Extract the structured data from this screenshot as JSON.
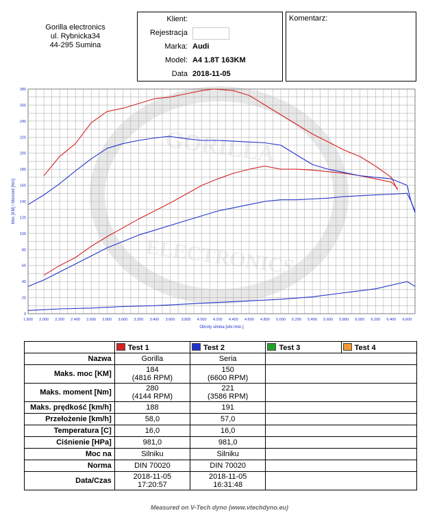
{
  "header": {
    "company": [
      "Gorilla electronics",
      "ul. Rybnicka34",
      "44-295 Sumina"
    ],
    "client_label": "Klient:",
    "reg_label": "Rejestracja",
    "make_label": "Marka:",
    "make_value": "Audi",
    "model_label": "Model:",
    "model_value": "A4 1.8T 163KM",
    "date_label": "Data",
    "date_value": "2018-11-05",
    "comment_label": "Komentarz:"
  },
  "chart_data": {
    "type": "line",
    "xlabel": "Obroty silnika [obr./min.]",
    "ylabel": "Moc [KM] / Moment [Nm]",
    "xlim": [
      1800,
      6700
    ],
    "ylim": [
      0,
      280
    ],
    "x_ticks": [
      "1.800",
      "2.000",
      "2.200",
      "2.400",
      "2.600",
      "2.800",
      "3.000",
      "3.200",
      "3.400",
      "3.600",
      "3.800",
      "4.000",
      "4.200",
      "4.400",
      "4.600",
      "4.800",
      "5.000",
      "5.200",
      "5.400",
      "5.600",
      "5.800",
      "6.000",
      "6.200",
      "6.400",
      "6.600"
    ],
    "y_ticks": [
      "0",
      "20",
      "40",
      "60",
      "80",
      "100",
      "120",
      "140",
      "160",
      "180",
      "200",
      "220",
      "240",
      "260",
      "280"
    ],
    "watermark": [
      "GORILLA",
      "ELECTRONICS"
    ],
    "series": [
      {
        "name": "Test 1 torque",
        "color": "#d42222",
        "x": [
          2000,
          2200,
          2400,
          2600,
          2800,
          3000,
          3200,
          3400,
          3600,
          3800,
          4000,
          4150,
          4400,
          4600,
          4800,
          5000,
          5200,
          5400,
          5600,
          5800,
          6000,
          6200,
          6400,
          6480
        ],
        "y": [
          172,
          196,
          212,
          238,
          252,
          256,
          262,
          268,
          270,
          274,
          278,
          280,
          278,
          272,
          260,
          248,
          236,
          224,
          214,
          204,
          196,
          184,
          170,
          154
        ]
      },
      {
        "name": "Test 1 power",
        "color": "#d42222",
        "x": [
          2000,
          2200,
          2400,
          2600,
          2800,
          3000,
          3200,
          3400,
          3600,
          3800,
          4000,
          4200,
          4400,
          4600,
          4800,
          5000,
          5200,
          5400,
          5600,
          5800,
          6000,
          6200,
          6400,
          6480
        ],
        "y": [
          48,
          60,
          70,
          84,
          96,
          107,
          118,
          128,
          138,
          149,
          160,
          168,
          175,
          180,
          184,
          180,
          180,
          179,
          177,
          175,
          172,
          168,
          164,
          156
        ]
      },
      {
        "name": "Test 2 torque",
        "color": "#2233cc",
        "x": [
          1800,
          2000,
          2200,
          2400,
          2600,
          2800,
          3000,
          3200,
          3400,
          3586,
          3800,
          4000,
          4200,
          4400,
          4600,
          4800,
          5000,
          5200,
          5400,
          5600,
          5800,
          6000,
          6200,
          6400,
          6600,
          6650,
          6700
        ],
        "y": [
          136,
          148,
          162,
          178,
          193,
          206,
          212,
          216,
          219,
          221,
          218,
          216,
          216,
          215,
          214,
          213,
          210,
          198,
          186,
          180,
          176,
          172,
          170,
          168,
          160,
          140,
          128
        ]
      },
      {
        "name": "Test 2 power",
        "color": "#2233cc",
        "x": [
          1800,
          2000,
          2200,
          2400,
          2600,
          2800,
          3000,
          3200,
          3400,
          3600,
          3800,
          4000,
          4200,
          4400,
          4600,
          4800,
          5000,
          5200,
          5400,
          5600,
          5800,
          6000,
          6200,
          6400,
          6600,
          6650,
          6700
        ],
        "y": [
          34,
          42,
          52,
          62,
          72,
          82,
          90,
          98,
          104,
          110,
          116,
          122,
          128,
          132,
          136,
          140,
          142,
          142,
          143,
          144,
          146,
          147,
          148,
          149,
          150,
          140,
          126
        ]
      },
      {
        "name": "Loss",
        "color": "#2233cc",
        "x": [
          1800,
          2200,
          2600,
          3000,
          3400,
          3800,
          4200,
          4600,
          5000,
          5400,
          5800,
          6200,
          6600,
          6700
        ],
        "y": [
          4,
          6,
          7,
          9,
          10,
          12,
          14,
          16,
          18,
          21,
          26,
          31,
          40,
          34
        ]
      }
    ]
  },
  "legend": [
    {
      "label": "Test 1",
      "color": "#d42222"
    },
    {
      "label": "Test 2",
      "color": "#2233cc"
    },
    {
      "label": "Test 3",
      "color": "#22a02a"
    },
    {
      "label": "Test 4",
      "color": "#f09a30"
    }
  ],
  "table": {
    "rows": [
      {
        "label": "Nazwa",
        "t1": [
          "Gorilla"
        ],
        "t2": [
          "Seria"
        ]
      },
      {
        "label": "Maks. moc [KM]",
        "t1": [
          "184",
          "(4816 RPM)"
        ],
        "t2": [
          "150",
          "(6600 RPM)"
        ]
      },
      {
        "label": "Maks. moment [Nm]",
        "t1": [
          "280",
          "(4144 RPM)"
        ],
        "t2": [
          "221",
          "(3586 RPM)"
        ]
      },
      {
        "label": "Maks. prędkość [km/h]",
        "t1": [
          "188"
        ],
        "t2": [
          "191"
        ]
      },
      {
        "label": "Przełożenie [km/h]",
        "t1": [
          "58,0"
        ],
        "t2": [
          "57,0"
        ]
      },
      {
        "label": "Temperatura [C]",
        "t1": [
          "16,0"
        ],
        "t2": [
          "16,0"
        ]
      },
      {
        "label": "Ciśnienie [HPa]",
        "t1": [
          "981,0"
        ],
        "t2": [
          "981,0"
        ]
      },
      {
        "label": "Moc na",
        "t1": [
          "Silniku"
        ],
        "t2": [
          "Silniku"
        ]
      },
      {
        "label": "Norma",
        "t1": [
          "DIN 70020"
        ],
        "t2": [
          "DIN 70020"
        ]
      },
      {
        "label": "Data/Czas",
        "t1": [
          "2018-11-05",
          "17:20:57"
        ],
        "t2": [
          "2018-11-05",
          "16:31:48"
        ]
      }
    ]
  },
  "footer": "Measured on V-Tech dyno (www.vtechdyno.eu)"
}
